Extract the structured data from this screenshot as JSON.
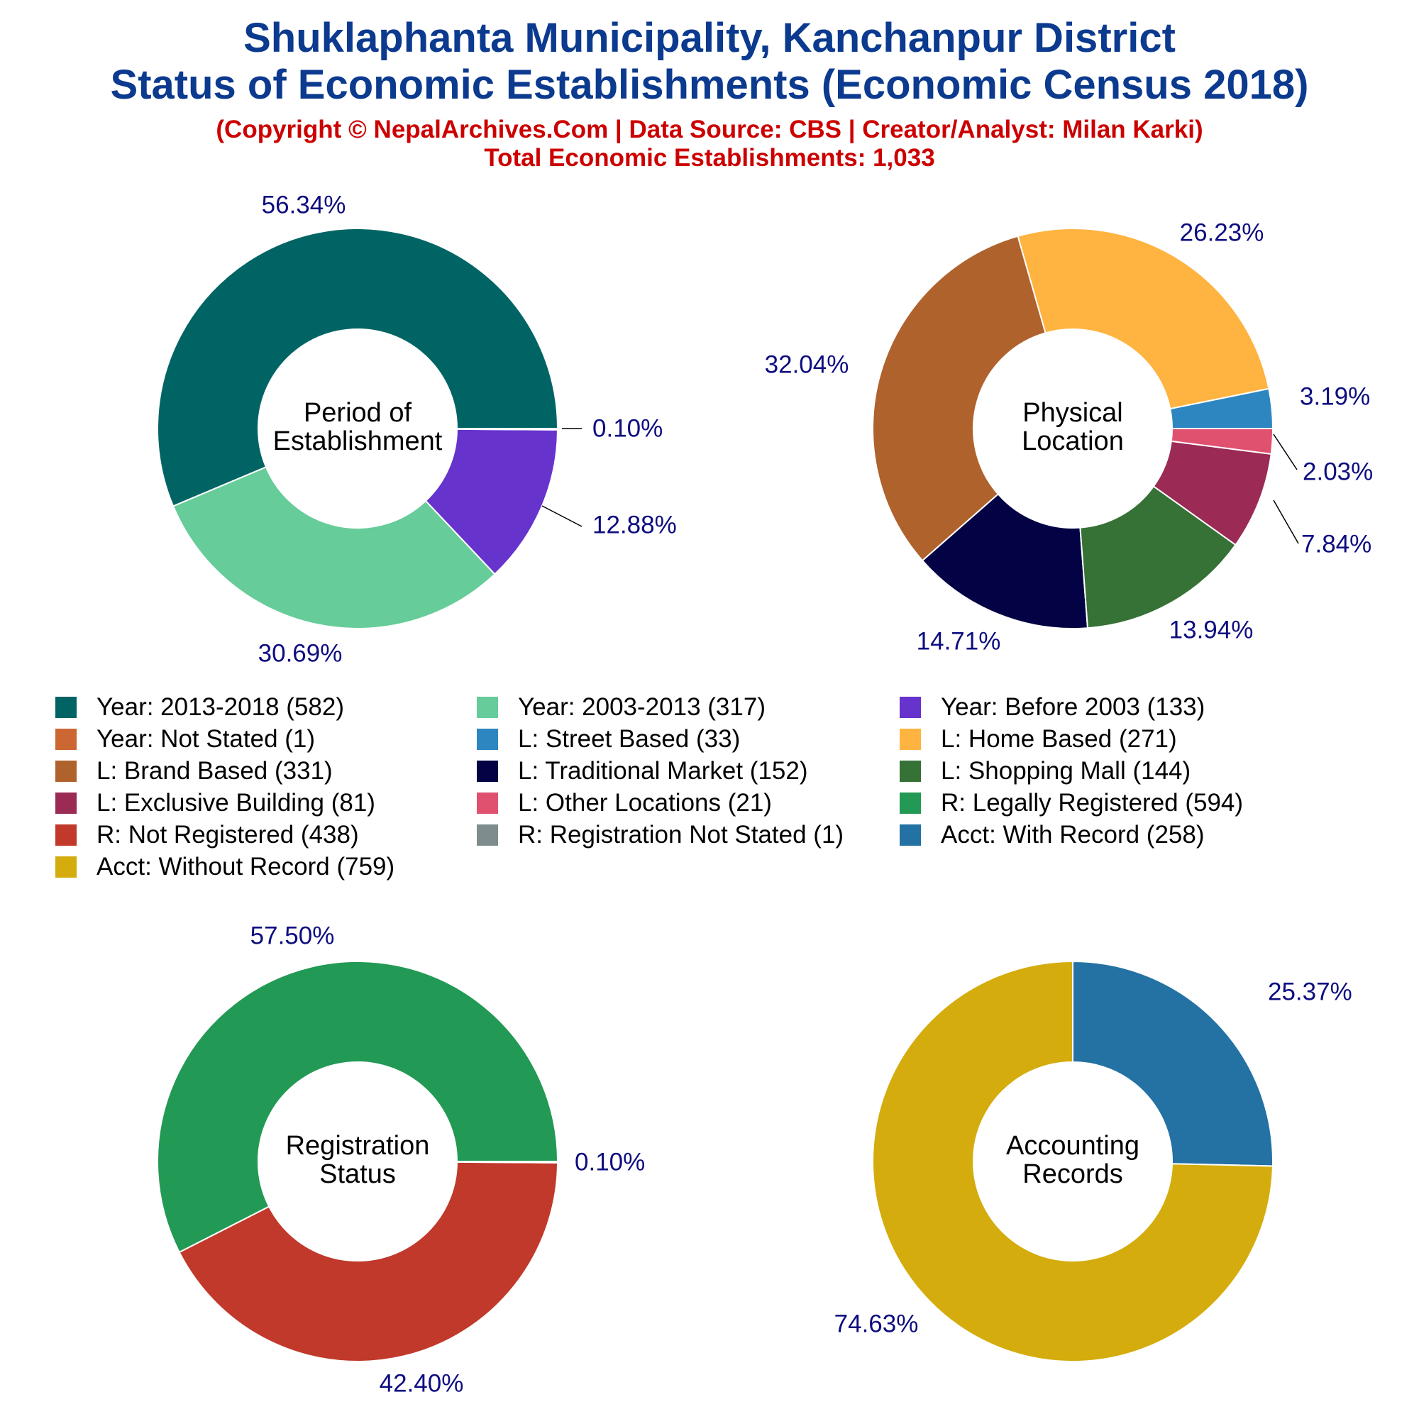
{
  "header": {
    "title_line1": "Shuklaphanta Municipality, Kanchanpur District",
    "title_line2": "Status of Economic Establishments (Economic Census 2018)",
    "subtitle_line1": "(Copyright © NepalArchives.Com | Data Source: CBS | Creator/Analyst: Milan Karki)",
    "subtitle_line2": "Total Economic Establishments: 1,033"
  },
  "colors": {
    "label_text": "#0d0d80",
    "center_text": "#000000"
  },
  "chart_data": [
    {
      "type": "pie",
      "center_label": [
        "Period of",
        "Establishment"
      ],
      "slices": [
        {
          "label": "Year: 2013-2018",
          "value": 582,
          "percent": "56.34%",
          "color": "#016464"
        },
        {
          "label": "Year: 2003-2013",
          "value": 317,
          "percent": "30.69%",
          "color": "#66cc99"
        },
        {
          "label": "Year: Before 2003",
          "value": 133,
          "percent": "12.88%",
          "color": "#6633cc"
        },
        {
          "label": "Year: Not Stated",
          "value": 1,
          "percent": "0.10%",
          "color": "#cc6633"
        }
      ]
    },
    {
      "type": "pie",
      "center_label": [
        "Physical",
        "Location"
      ],
      "slices": [
        {
          "label": "L: Street Based",
          "value": 33,
          "percent": "3.19%",
          "color": "#2e86c1"
        },
        {
          "label": "L: Home Based",
          "value": 271,
          "percent": "26.23%",
          "color": "#ffb340"
        },
        {
          "label": "L: Brand Based",
          "value": 331,
          "percent": "32.04%",
          "color": "#b0622d"
        },
        {
          "label": "L: Traditional Market",
          "value": 152,
          "percent": "14.71%",
          "color": "#020244"
        },
        {
          "label": "L: Shopping Mall",
          "value": 144,
          "percent": "13.94%",
          "color": "#367136"
        },
        {
          "label": "L: Exclusive Building",
          "value": 81,
          "percent": "7.84%",
          "color": "#9b2a55"
        },
        {
          "label": "L: Other Locations",
          "value": 21,
          "percent": "2.03%",
          "color": "#e05170"
        }
      ]
    },
    {
      "type": "pie",
      "center_label": [
        "Registration",
        "Status"
      ],
      "slices": [
        {
          "label": "R: Legally Registered",
          "value": 594,
          "percent": "57.50%",
          "color": "#229954"
        },
        {
          "label": "R: Not Registered",
          "value": 438,
          "percent": "42.40%",
          "color": "#c0392b"
        },
        {
          "label": "R: Registration Not Stated",
          "value": 1,
          "percent": "0.10%",
          "color": "#7f8c8d"
        }
      ]
    },
    {
      "type": "pie",
      "center_label": [
        "Accounting",
        "Records"
      ],
      "slices": [
        {
          "label": "Acct: With Record",
          "value": 258,
          "percent": "25.37%",
          "color": "#2471a3"
        },
        {
          "label": "Acct: Without Record",
          "value": 759,
          "percent": "74.63%",
          "color": "#d4ac0d"
        }
      ]
    }
  ],
  "legend": [
    {
      "text": "Year: 2013-2018 (582)",
      "color": "#016464"
    },
    {
      "text": "Year: 2003-2013 (317)",
      "color": "#66cc99"
    },
    {
      "text": "Year: Before 2003 (133)",
      "color": "#6633cc"
    },
    {
      "text": "Year: Not Stated (1)",
      "color": "#cc6633"
    },
    {
      "text": "L: Street Based (33)",
      "color": "#2e86c1"
    },
    {
      "text": "L: Home Based (271)",
      "color": "#ffb340"
    },
    {
      "text": "L: Brand Based (331)",
      "color": "#b0622d"
    },
    {
      "text": "L: Traditional Market (152)",
      "color": "#020244"
    },
    {
      "text": "L: Shopping Mall (144)",
      "color": "#367136"
    },
    {
      "text": "L: Exclusive Building (81)",
      "color": "#9b2a55"
    },
    {
      "text": "L: Other Locations (21)",
      "color": "#e05170"
    },
    {
      "text": "R: Legally Registered (594)",
      "color": "#229954"
    },
    {
      "text": "R: Not Registered (438)",
      "color": "#c0392b"
    },
    {
      "text": "R: Registration Not Stated (1)",
      "color": "#7f8c8d"
    },
    {
      "text": "Acct: With Record (258)",
      "color": "#2471a3"
    },
    {
      "text": "Acct: Without Record (759)",
      "color": "#d4ac0d"
    }
  ]
}
